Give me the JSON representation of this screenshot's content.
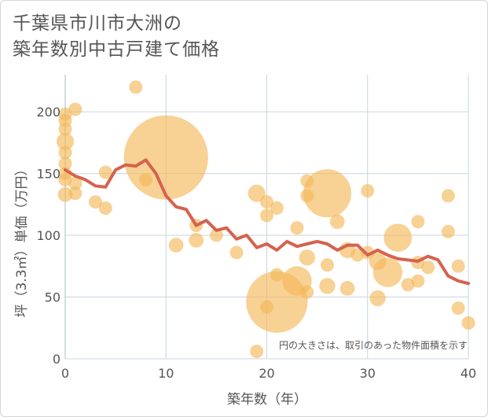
{
  "title_lines": [
    "千葉県市川市大洲の",
    "築年数別中古戸建て価格"
  ],
  "colors": {
    "bubble": "#f5b95a",
    "line": "#d4634e",
    "grid": "#c8d6e0",
    "text": "#555555"
  },
  "chart_data": {
    "type": "scatter",
    "xlabel": "築年数（年）",
    "ylabel": "坪（3.3㎡）単価（万円）",
    "xlim": [
      0,
      40
    ],
    "ylim": [
      0,
      230
    ],
    "xticks": [
      0,
      10,
      20,
      30,
      40
    ],
    "yticks": [
      0,
      50,
      100,
      150,
      200
    ],
    "grid": true,
    "note": "円の大きさは、取引のあった物件面積を示す",
    "bubbles": [
      {
        "x": 0,
        "y": 198,
        "s": 1
      },
      {
        "x": 0,
        "y": 193,
        "s": 1
      },
      {
        "x": 0,
        "y": 186,
        "s": 1
      },
      {
        "x": 0,
        "y": 176,
        "s": 1.3
      },
      {
        "x": 0,
        "y": 167,
        "s": 1
      },
      {
        "x": 0,
        "y": 158,
        "s": 1
      },
      {
        "x": 0,
        "y": 150,
        "s": 1
      },
      {
        "x": 0,
        "y": 145,
        "s": 1
      },
      {
        "x": 0,
        "y": 133,
        "s": 1.1
      },
      {
        "x": 1,
        "y": 202,
        "s": 1
      },
      {
        "x": 1,
        "y": 142,
        "s": 1
      },
      {
        "x": 1,
        "y": 134,
        "s": 1
      },
      {
        "x": 3,
        "y": 127,
        "s": 1
      },
      {
        "x": 4,
        "y": 151,
        "s": 1
      },
      {
        "x": 4,
        "y": 122,
        "s": 1
      },
      {
        "x": 7,
        "y": 220,
        "s": 1
      },
      {
        "x": 8,
        "y": 145,
        "s": 1
      },
      {
        "x": 10,
        "y": 163,
        "s": 6.3
      },
      {
        "x": 11,
        "y": 92,
        "s": 1.1
      },
      {
        "x": 13,
        "y": 108,
        "s": 1
      },
      {
        "x": 13,
        "y": 96,
        "s": 1.1
      },
      {
        "x": 15,
        "y": 100,
        "s": 1
      },
      {
        "x": 17,
        "y": 86,
        "s": 1
      },
      {
        "x": 19,
        "y": 134,
        "s": 1.3
      },
      {
        "x": 19,
        "y": 6,
        "s": 1
      },
      {
        "x": 20,
        "y": 127,
        "s": 1
      },
      {
        "x": 20,
        "y": 116,
        "s": 1
      },
      {
        "x": 20,
        "y": 42,
        "s": 1
      },
      {
        "x": 21,
        "y": 122,
        "s": 1
      },
      {
        "x": 21,
        "y": 68,
        "s": 1
      },
      {
        "x": 21,
        "y": 46,
        "s": 4.6
      },
      {
        "x": 23,
        "y": 63,
        "s": 2.2
      },
      {
        "x": 23,
        "y": 106,
        "s": 1
      },
      {
        "x": 24,
        "y": 144,
        "s": 1
      },
      {
        "x": 24,
        "y": 132,
        "s": 1
      },
      {
        "x": 24,
        "y": 82,
        "s": 1.2
      },
      {
        "x": 24,
        "y": 54,
        "s": 1
      },
      {
        "x": 26,
        "y": 134,
        "s": 3.6
      },
      {
        "x": 26,
        "y": 76,
        "s": 1
      },
      {
        "x": 26,
        "y": 59,
        "s": 1.2
      },
      {
        "x": 27,
        "y": 111,
        "s": 1.1
      },
      {
        "x": 28,
        "y": 88,
        "s": 1.2
      },
      {
        "x": 28,
        "y": 57,
        "s": 1.1
      },
      {
        "x": 29,
        "y": 84,
        "s": 1
      },
      {
        "x": 30,
        "y": 136,
        "s": 1
      },
      {
        "x": 30,
        "y": 86,
        "s": 1
      },
      {
        "x": 31,
        "y": 79,
        "s": 1.3
      },
      {
        "x": 31,
        "y": 49,
        "s": 1.2
      },
      {
        "x": 32,
        "y": 70,
        "s": 2.2
      },
      {
        "x": 33,
        "y": 98,
        "s": 2.1
      },
      {
        "x": 34,
        "y": 60,
        "s": 1
      },
      {
        "x": 35,
        "y": 111,
        "s": 1
      },
      {
        "x": 35,
        "y": 78,
        "s": 1
      },
      {
        "x": 35,
        "y": 63,
        "s": 1
      },
      {
        "x": 36,
        "y": 74,
        "s": 1
      },
      {
        "x": 38,
        "y": 132,
        "s": 1
      },
      {
        "x": 38,
        "y": 103,
        "s": 1
      },
      {
        "x": 39,
        "y": 75,
        "s": 1
      },
      {
        "x": 39,
        "y": 41,
        "s": 1
      },
      {
        "x": 40,
        "y": 29,
        "s": 1
      }
    ],
    "series": [
      {
        "type": "line",
        "x": [
          0,
          1,
          2,
          3,
          4,
          5,
          6,
          7,
          8,
          9,
          10,
          11,
          12,
          13,
          14,
          15,
          16,
          17,
          18,
          19,
          20,
          21,
          22,
          23,
          24,
          25,
          26,
          27,
          28,
          29,
          30,
          31,
          32,
          33,
          34,
          35,
          36,
          37,
          38,
          39,
          40
        ],
        "values": [
          153,
          148,
          145,
          140,
          139,
          153,
          157,
          156,
          161,
          150,
          132,
          123,
          121,
          108,
          112,
          104,
          106,
          97,
          100,
          90,
          93,
          88,
          95,
          91,
          93,
          95,
          93,
          88,
          92,
          92,
          84,
          88,
          84,
          81,
          80,
          79,
          83,
          80,
          67,
          63,
          61
        ]
      }
    ]
  }
}
